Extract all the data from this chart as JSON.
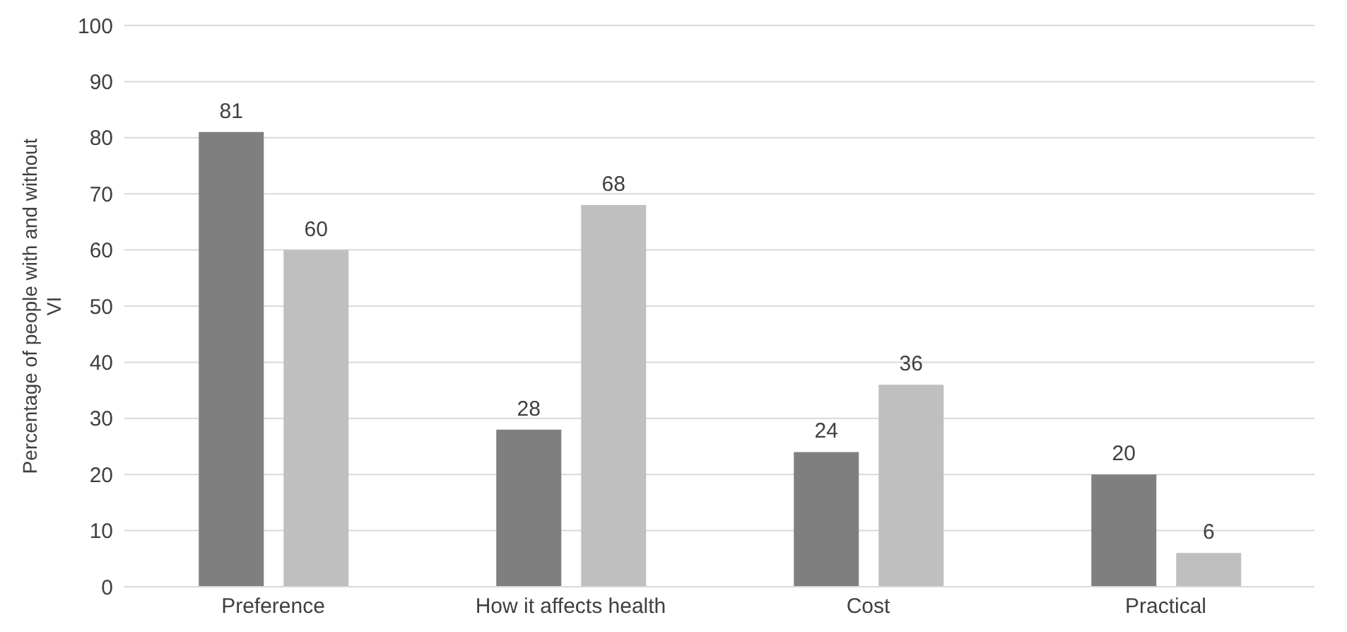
{
  "chart_data": {
    "type": "bar",
    "ylabel": "Percentage of people with and without VI",
    "categories": [
      "Preference",
      "How it affects health",
      "Cost",
      "Practical"
    ],
    "series": [
      {
        "color": "#7f7f80",
        "values": [
          81,
          28,
          24,
          20
        ]
      },
      {
        "color": "#bfbfc0",
        "values": [
          60,
          68,
          36,
          6
        ]
      }
    ],
    "ylim": [
      0,
      100
    ],
    "yticks": [
      0,
      10,
      20,
      30,
      40,
      50,
      60,
      70,
      80,
      90,
      100
    ],
    "grid": "y",
    "data_labels": true,
    "legend": false
  }
}
